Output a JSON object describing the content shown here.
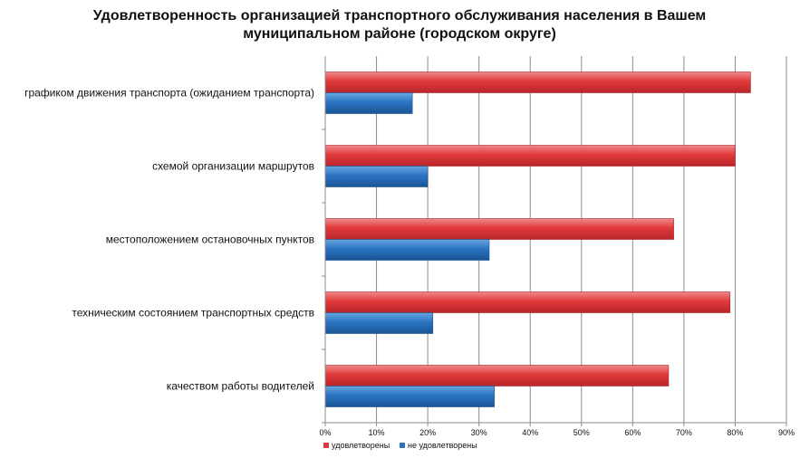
{
  "chart_data": {
    "type": "bar",
    "orientation": "horizontal",
    "title_lines": [
      "Удовлетворенность организацией транспортного обслуживания населения в Вашем",
      "муниципальном районе (городском округе)"
    ],
    "categories": [
      "графиком движения транспорта (ожиданием транспорта)",
      "схемой организации маршрутов",
      "местоположением остановочных пунктов",
      "техническим состоянием транспортных средств",
      "качеством работы водителей"
    ],
    "series": [
      {
        "name": "удовлетворены",
        "color": "#e0393b",
        "values": [
          83,
          80,
          68,
          79,
          67
        ]
      },
      {
        "name": "не удовлетворены",
        "color": "#2a74c2",
        "values": [
          17,
          20,
          32,
          21,
          33
        ]
      }
    ],
    "xlim": [
      0,
      90
    ],
    "xticks": [
      "0%",
      "10%",
      "20%",
      "30%",
      "40%",
      "50%",
      "60%",
      "70%",
      "80%",
      "90%"
    ],
    "grid": true,
    "legend_position": "bottom-left"
  }
}
